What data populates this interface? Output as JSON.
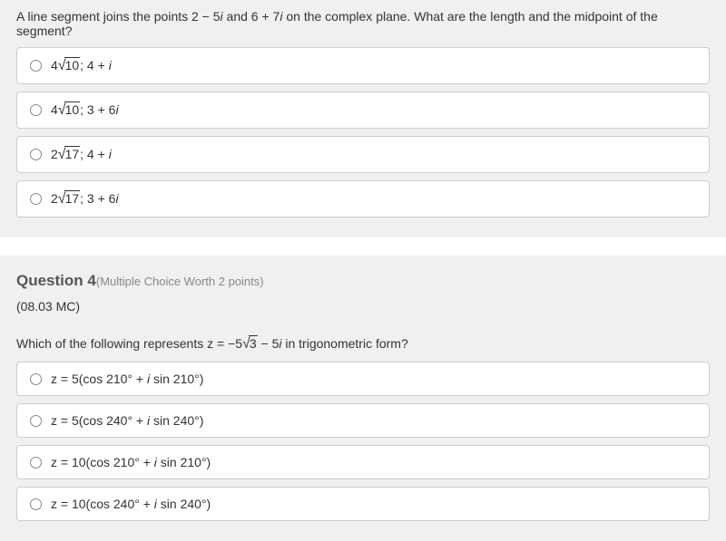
{
  "question3": {
    "text_pre": "A line segment joins the points 2 − 5",
    "text_i1": "i",
    "text_mid": " and 6 + 7",
    "text_i2": "i",
    "text_post": " on the complex plane. What are the length and the midpoint of the segment?",
    "options": [
      {
        "coef": "4",
        "radicand": "10",
        "rest": "; 4 + ",
        "i": "i"
      },
      {
        "coef": "4",
        "radicand": "10",
        "rest": "; 3 + 6",
        "i": "i"
      },
      {
        "coef": "2",
        "radicand": "17",
        "rest": "; 4 + ",
        "i": "i"
      },
      {
        "coef": "2",
        "radicand": "17",
        "rest": "; 3 + 6",
        "i": "i"
      }
    ]
  },
  "question4": {
    "title": "Question 4",
    "meta": "(Multiple Choice Worth 2 points)",
    "code": "(08.03 MC)",
    "text_pre": "Which of the following represents ",
    "expr_pre": "z = −5",
    "expr_radicand": "3",
    "expr_mid": " − 5",
    "expr_i": "i",
    "text_post": " in trigonometric form?",
    "options": [
      {
        "pre": "z = 5(cos 210° + ",
        "i": "i",
        "post": " sin 210°)"
      },
      {
        "pre": "z = 5(cos 240° + ",
        "i": "i",
        "post": " sin 240°)"
      },
      {
        "pre": "z = 10(cos 210° + ",
        "i": "i",
        "post": " sin 210°)"
      },
      {
        "pre": "z = 10(cos 240° + ",
        "i": "i",
        "post": " sin 240°)"
      }
    ]
  }
}
